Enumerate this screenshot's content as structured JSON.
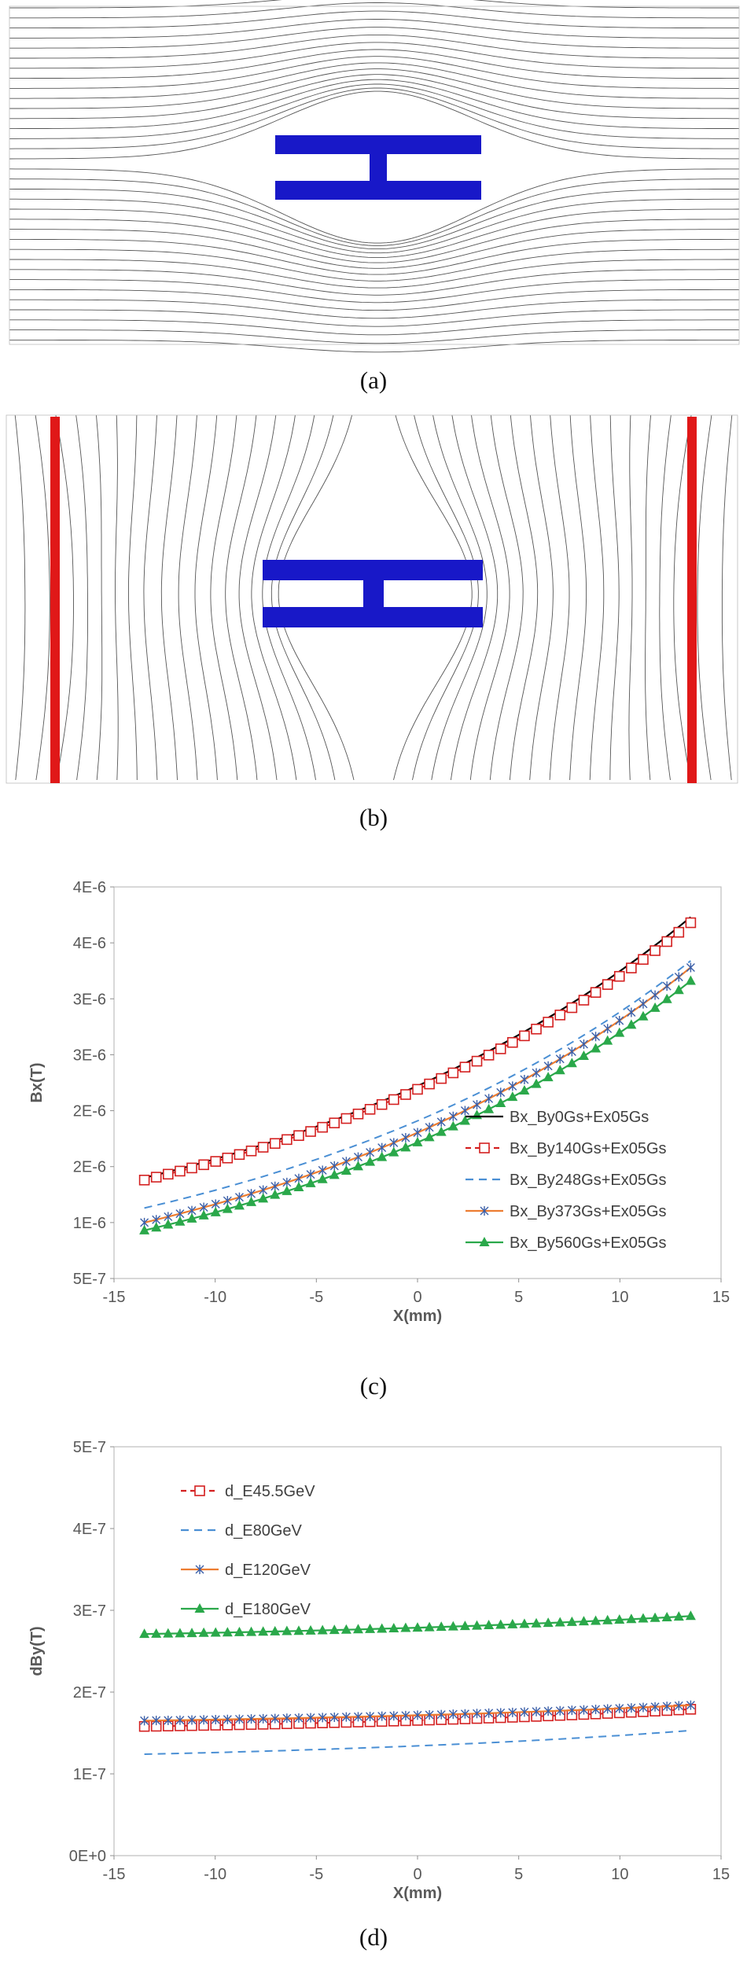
{
  "figure": {
    "panel_a": {
      "caption": "(a)"
    },
    "panel_b": {
      "caption": "(b)"
    },
    "panel_c": {
      "caption": "(c)"
    },
    "panel_d": {
      "caption": "(d)"
    }
  },
  "colors": {
    "magnet": "#1818c8",
    "coil": "#e01818",
    "field_line": "#555555"
  },
  "chart_data": [
    {
      "type": "line",
      "id": "c",
      "title": "",
      "xlabel": "X(mm)",
      "ylabel": "Bx(T)",
      "xlim": [
        -15,
        15
      ],
      "ylim": [
        5e-07,
        4e-06
      ],
      "xticks": [
        -15,
        -10,
        -5,
        0,
        5,
        10,
        15
      ],
      "yticks": [
        5e-07,
        1e-06,
        1.5e-06,
        2e-06,
        2.5e-06,
        3e-06,
        3.5e-06,
        4e-06
      ],
      "ytick_labels": [
        "5E-7",
        "1E-6",
        "2E-6",
        "2E-6",
        "3E-6",
        "3E-6",
        "4E-6",
        "4E-6"
      ],
      "x_range": [
        -13.5,
        13.5
      ],
      "series": [
        {
          "name": "Bx_By0Gs+Ex05Gs",
          "color": "#000000",
          "dash": "",
          "marker": "none",
          "y_start": 1.4e-06,
          "y_end": 3.73e-06
        },
        {
          "name": "Bx_By140Gs+Ex05Gs",
          "color": "#d42020",
          "dash": "7,5",
          "marker": "square",
          "y_start": 1.38e-06,
          "y_end": 3.68e-06
        },
        {
          "name": "Bx_By248Gs+Ex05Gs",
          "color": "#4a8fd4",
          "dash": "10,7",
          "marker": "none",
          "y_start": 1.13e-06,
          "y_end": 3.34e-06
        },
        {
          "name": "Bx_By373Gs+Ex05Gs",
          "color": "#ed7d31",
          "dash": "",
          "marker": "star",
          "y_start": 1e-06,
          "y_end": 3.28e-06
        },
        {
          "name": "Bx_By560Gs+Ex05Gs",
          "color": "#2aa84a",
          "dash": "",
          "marker": "triangle",
          "y_start": 9.3e-07,
          "y_end": 3.16e-06
        }
      ]
    },
    {
      "type": "line",
      "id": "d",
      "title": "",
      "xlabel": "X(mm)",
      "ylabel": "dBy(T)",
      "xlim": [
        -15,
        15
      ],
      "ylim": [
        0,
        5e-07
      ],
      "xticks": [
        -15,
        -10,
        -5,
        0,
        5,
        10,
        15
      ],
      "yticks": [
        0,
        1e-07,
        2e-07,
        3e-07,
        4e-07,
        5e-07
      ],
      "ytick_labels": [
        "0E+0",
        "1E-7",
        "2E-7",
        "3E-7",
        "4E-7",
        "5E-7"
      ],
      "x_range": [
        -13.5,
        13.5
      ],
      "series": [
        {
          "name": "d_E45.5GeV",
          "color": "#d42020",
          "dash": "7,5",
          "marker": "square",
          "y_start": 1.58e-07,
          "y_end": 1.79e-07
        },
        {
          "name": "d_E80GeV",
          "color": "#4a8fd4",
          "dash": "10,7",
          "marker": "none",
          "y_start": 1.24e-07,
          "y_end": 1.53e-07
        },
        {
          "name": "d_E120GeV",
          "color": "#ed7d31",
          "dash": "",
          "marker": "star",
          "y_start": 1.65e-07,
          "y_end": 1.84e-07
        },
        {
          "name": "d_E180GeV",
          "color": "#2aa84a",
          "dash": "",
          "marker": "triangle",
          "y_start": 2.71e-07,
          "y_end": 2.93e-07
        }
      ]
    }
  ]
}
